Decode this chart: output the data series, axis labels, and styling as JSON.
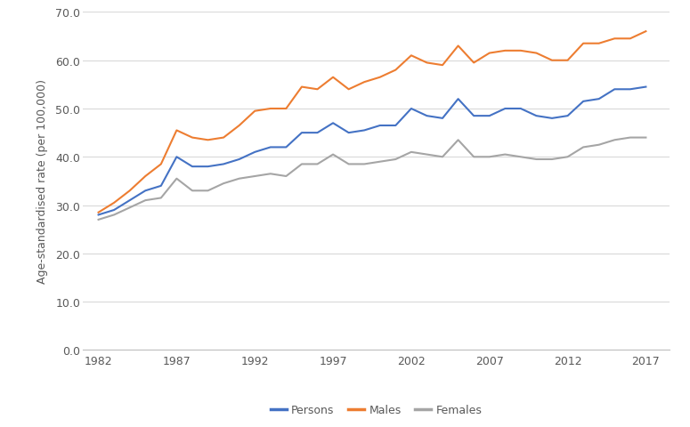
{
  "years": [
    1982,
    1983,
    1984,
    1985,
    1986,
    1987,
    1988,
    1989,
    1990,
    1991,
    1992,
    1993,
    1994,
    1995,
    1996,
    1997,
    1998,
    1999,
    2000,
    2001,
    2002,
    2003,
    2004,
    2005,
    2006,
    2007,
    2008,
    2009,
    2010,
    2011,
    2012,
    2013,
    2014,
    2015,
    2016,
    2017
  ],
  "persons": [
    28.0,
    29.0,
    31.0,
    33.0,
    34.0,
    40.0,
    38.0,
    38.0,
    38.5,
    39.5,
    41.0,
    42.0,
    42.0,
    45.0,
    45.0,
    47.0,
    45.0,
    45.5,
    46.5,
    46.5,
    50.0,
    48.5,
    48.0,
    52.0,
    48.5,
    48.5,
    50.0,
    50.0,
    48.5,
    48.0,
    48.5,
    51.5,
    52.0,
    54.0,
    54.0,
    54.5
  ],
  "males": [
    28.5,
    30.5,
    33.0,
    36.0,
    38.5,
    45.5,
    44.0,
    43.5,
    44.0,
    46.5,
    49.5,
    50.0,
    50.0,
    54.5,
    54.0,
    56.5,
    54.0,
    55.5,
    56.5,
    58.0,
    61.0,
    59.5,
    59.0,
    63.0,
    59.5,
    61.5,
    62.0,
    62.0,
    61.5,
    60.0,
    60.0,
    63.5,
    63.5,
    64.5,
    64.5,
    66.0
  ],
  "females": [
    27.0,
    28.0,
    29.5,
    31.0,
    31.5,
    35.5,
    33.0,
    33.0,
    34.5,
    35.5,
    36.0,
    36.5,
    36.0,
    38.5,
    38.5,
    40.5,
    38.5,
    38.5,
    39.0,
    39.5,
    41.0,
    40.5,
    40.0,
    43.5,
    40.0,
    40.0,
    40.5,
    40.0,
    39.5,
    39.5,
    40.0,
    42.0,
    42.5,
    43.5,
    44.0,
    44.0
  ],
  "persons_color": "#4472c4",
  "males_color": "#ed7d31",
  "females_color": "#a5a5a5",
  "ylabel": "Age-standardised rate (per 100,000)",
  "ylim": [
    0.0,
    70.0
  ],
  "yticks": [
    0.0,
    10.0,
    20.0,
    30.0,
    40.0,
    50.0,
    60.0,
    70.0
  ],
  "xticks": [
    1982,
    1987,
    1992,
    1997,
    2002,
    2007,
    2012,
    2017
  ],
  "legend_labels": [
    "Persons",
    "Males",
    "Females"
  ],
  "line_width": 1.5
}
